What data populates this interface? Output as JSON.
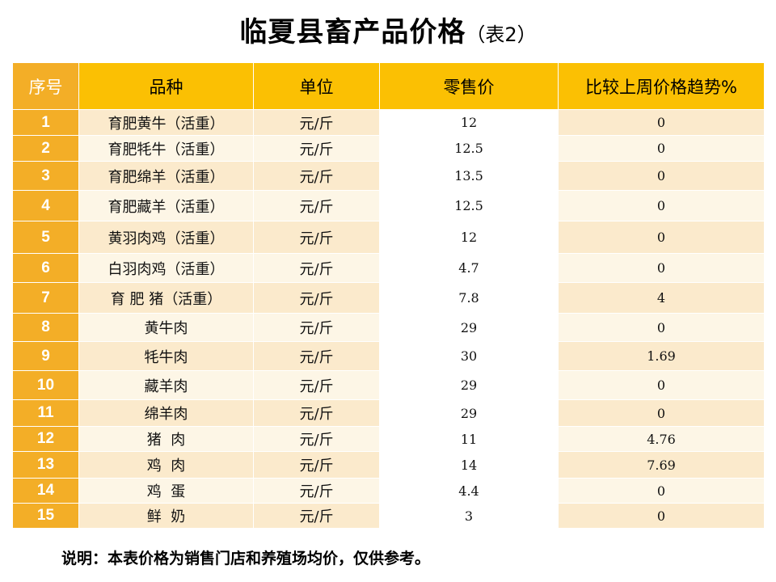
{
  "title": {
    "main": "临夏县畜产品价格",
    "sub": "（表2）"
  },
  "table": {
    "headers": [
      "序号",
      "品种",
      "单位",
      "零售价",
      "比较上周价格趋势%"
    ],
    "rows": [
      {
        "idx": "1",
        "name": "育肥黄牛（活重）",
        "unit": "元/斤",
        "price": "12",
        "change": "0"
      },
      {
        "idx": "2",
        "name": "育肥牦牛（活重）",
        "unit": "元/斤",
        "price": "12.5",
        "change": "0"
      },
      {
        "idx": "3",
        "name": "育肥绵羊（活重）",
        "unit": "元/斤",
        "price": "13.5",
        "change": "0"
      },
      {
        "idx": "4",
        "name": "育肥藏羊（活重）",
        "unit": "元/斤",
        "price": "12.5",
        "change": "0"
      },
      {
        "idx": "5",
        "name": "黄羽肉鸡（活重）",
        "unit": "元/斤",
        "price": "12",
        "change": "0"
      },
      {
        "idx": "6",
        "name": "白羽肉鸡（活重）",
        "unit": "元/斤",
        "price": "4.7",
        "change": "0"
      },
      {
        "idx": "7",
        "name": "育 肥 猪（活重）",
        "unit": "元/斤",
        "price": "7.8",
        "change": "4"
      },
      {
        "idx": "8",
        "name": "黄牛肉",
        "unit": "元/斤",
        "price": "29",
        "change": "0"
      },
      {
        "idx": "9",
        "name": "牦牛肉",
        "unit": "元/斤",
        "price": "30",
        "change": "1.69"
      },
      {
        "idx": "10",
        "name": "藏羊肉",
        "unit": "元/斤",
        "price": "29",
        "change": "0"
      },
      {
        "idx": "11",
        "name": "绵羊肉",
        "unit": "元/斤",
        "price": "29",
        "change": "0"
      },
      {
        "idx": "12",
        "name": "猪  肉",
        "unit": "元/斤",
        "price": "11",
        "change": "4.76"
      },
      {
        "idx": "13",
        "name": "鸡  肉",
        "unit": "元/斤",
        "price": "14",
        "change": "7.69"
      },
      {
        "idx": "14",
        "name": "鸡  蛋",
        "unit": "元/斤",
        "price": "4.4",
        "change": "0"
      },
      {
        "idx": "15",
        "name": "鲜  奶",
        "unit": "元/斤",
        "price": "3",
        "change": "0"
      }
    ]
  },
  "note": "说明：本表价格为销售门店和养殖场均价，仅供参考。",
  "colors": {
    "header_bg": "#fbc003",
    "index_bg": "#f3ae27",
    "row_light": "#fdf6e6",
    "row_dark": "#fbeacc"
  }
}
